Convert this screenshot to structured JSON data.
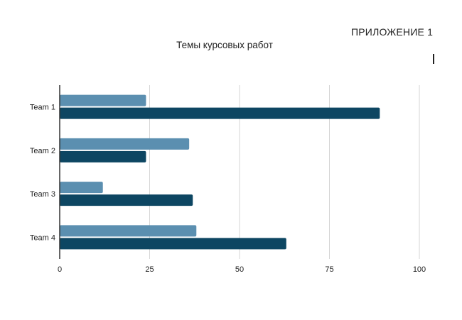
{
  "header": {
    "appendix_label": "ПРИЛОЖЕНИЕ 1"
  },
  "chart_data": {
    "type": "bar",
    "orientation": "horizontal",
    "title": "Темы курсовых работ",
    "xlabel": "",
    "ylabel": "",
    "categories": [
      "Team 1",
      "Team 2",
      "Team 3",
      "Team 4"
    ],
    "series": [
      {
        "values": [
          24,
          36,
          12,
          38
        ],
        "color": "#5b8fb0"
      },
      {
        "values": [
          89,
          24,
          37,
          63
        ],
        "color": "#0d4662"
      }
    ],
    "xlim": [
      0,
      100
    ],
    "xticks": [
      0,
      25,
      50,
      75,
      100
    ],
    "grid": true,
    "legend": "none"
  }
}
